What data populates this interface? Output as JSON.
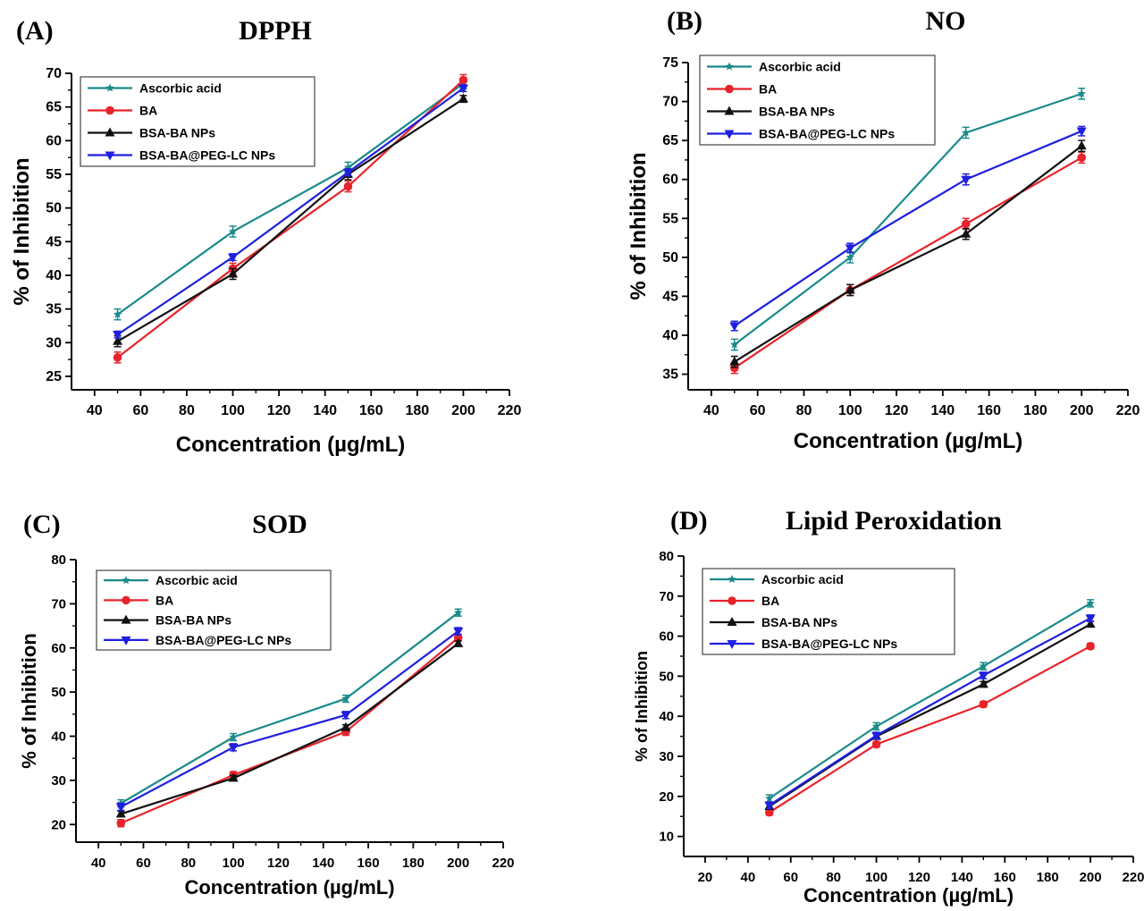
{
  "chart_data": [
    {
      "panel": "(A)",
      "title": "DPPH",
      "type": "line",
      "xlabel": "Concentration (µg/mL)",
      "ylabel": "% of Inhibition",
      "xlim": [
        30,
        220
      ],
      "ylim": [
        23,
        70
      ],
      "xticks": [
        40,
        60,
        80,
        100,
        120,
        140,
        160,
        180,
        200,
        220
      ],
      "yticks": [
        25,
        30,
        35,
        40,
        45,
        50,
        55,
        60,
        65,
        70
      ],
      "legend": "top-left",
      "grid": false,
      "x": [
        50,
        100,
        150,
        200
      ],
      "series": [
        {
          "name": "Ascorbic acid",
          "values": [
            34.2,
            46.5,
            56.0,
            68.5
          ],
          "errors": [
            0.8,
            0.8,
            0.8,
            0.8
          ],
          "color": "#1a8a8a",
          "marker": "star"
        },
        {
          "name": "BA",
          "values": [
            27.8,
            41.0,
            53.2,
            69.0
          ],
          "errors": [
            0.8,
            0.8,
            0.8,
            0.8
          ],
          "color": "#e8232a",
          "marker": "circle"
        },
        {
          "name": "BSA-BA NPs",
          "values": [
            30.2,
            40.2,
            55.0,
            66.2
          ],
          "errors": [
            0.8,
            0.8,
            0.8,
            0.5
          ],
          "color": "#111111",
          "marker": "triangle-up"
        },
        {
          "name": "BSA-BA@PEG-LC NPs",
          "values": [
            31.2,
            42.7,
            55.3,
            67.8
          ],
          "errors": [
            0.5,
            0.5,
            0.5,
            0.5
          ],
          "color": "#1f1fe0",
          "marker": "triangle-down"
        }
      ]
    },
    {
      "panel": "(B)",
      "title": "NO",
      "type": "line",
      "xlabel": "Concentration (µg/mL)",
      "ylabel": "% of Inhibition",
      "xlim": [
        30,
        220
      ],
      "ylim": [
        33,
        75
      ],
      "xticks": [
        40,
        60,
        80,
        100,
        120,
        140,
        160,
        180,
        200,
        220
      ],
      "yticks": [
        35,
        40,
        45,
        50,
        55,
        60,
        65,
        70,
        75
      ],
      "legend": "top-left",
      "grid": false,
      "x": [
        50,
        100,
        150,
        200
      ],
      "series": [
        {
          "name": "Ascorbic acid",
          "values": [
            38.8,
            50.0,
            66.0,
            71.0
          ],
          "errors": [
            0.7,
            0.7,
            0.7,
            0.7
          ],
          "color": "#1a8a8a",
          "marker": "star"
        },
        {
          "name": "BA",
          "values": [
            35.8,
            45.8,
            54.3,
            62.8
          ],
          "errors": [
            0.7,
            0.7,
            0.7,
            0.7
          ],
          "color": "#e8232a",
          "marker": "circle"
        },
        {
          "name": "BSA-BA NPs",
          "values": [
            36.6,
            45.8,
            53.0,
            64.3
          ],
          "errors": [
            0.7,
            0.7,
            0.7,
            0.7
          ],
          "color": "#111111",
          "marker": "triangle-up"
        },
        {
          "name": "BSA-BA@PEG-LC NPs",
          "values": [
            41.2,
            51.2,
            60.0,
            66.2
          ],
          "errors": [
            0.6,
            0.6,
            0.7,
            0.6
          ],
          "color": "#1f1fe0",
          "marker": "triangle-down"
        }
      ]
    },
    {
      "panel": "(C)",
      "title": "SOD",
      "type": "line",
      "xlabel": "Concentration (µg/mL)",
      "ylabel": "% of Inhibition",
      "xlim": [
        30,
        220
      ],
      "ylim": [
        16,
        80
      ],
      "xticks": [
        40,
        60,
        80,
        100,
        120,
        140,
        160,
        180,
        200,
        220
      ],
      "yticks": [
        20,
        30,
        40,
        50,
        60,
        70,
        80
      ],
      "legend": "top-left",
      "grid": false,
      "x": [
        50,
        100,
        150,
        200
      ],
      "series": [
        {
          "name": "Ascorbic acid",
          "values": [
            24.8,
            39.8,
            48.5,
            68.0
          ],
          "errors": [
            0.8,
            0.8,
            0.8,
            0.8
          ],
          "color": "#1a8a8a",
          "marker": "star"
        },
        {
          "name": "BA",
          "values": [
            20.3,
            31.2,
            41.0,
            62.3
          ],
          "errors": [
            0.8,
            0.8,
            0.8,
            0.8
          ],
          "color": "#e8232a",
          "marker": "circle"
        },
        {
          "name": "BSA-BA NPs",
          "values": [
            22.4,
            30.5,
            42.0,
            61.0
          ],
          "errors": [
            0.6,
            0.6,
            0.6,
            0.6
          ],
          "color": "#111111",
          "marker": "triangle-up"
        },
        {
          "name": "BSA-BA@PEG-LC NPs",
          "values": [
            24.0,
            37.5,
            44.8,
            63.8
          ],
          "errors": [
            0.8,
            0.8,
            0.8,
            0.8
          ],
          "color": "#1f1fe0",
          "marker": "triangle-down"
        }
      ]
    },
    {
      "panel": "(D)",
      "title": "Lipid Peroxidation",
      "type": "line",
      "xlabel": "Concentration (µg/mL)",
      "ylabel": "% of Inhibition",
      "xlim": [
        10,
        220
      ],
      "ylim": [
        5,
        80
      ],
      "xticks": [
        20,
        40,
        60,
        80,
        100,
        120,
        140,
        160,
        180,
        200,
        220
      ],
      "yticks": [
        10,
        20,
        30,
        40,
        50,
        60,
        70,
        80
      ],
      "legend": "top-left",
      "grid": false,
      "x": [
        50,
        100,
        150,
        200
      ],
      "series": [
        {
          "name": "Ascorbic acid",
          "values": [
            19.5,
            37.5,
            52.5,
            68.2
          ],
          "errors": [
            0.9,
            0.9,
            0.9,
            0.9
          ],
          "color": "#1a8a8a",
          "marker": "star"
        },
        {
          "name": "BA",
          "values": [
            16.0,
            33.0,
            43.0,
            57.5
          ],
          "errors": [
            0.7,
            0.7,
            0.7,
            0.7
          ],
          "color": "#e8232a",
          "marker": "circle"
        },
        {
          "name": "BSA-BA NPs",
          "values": [
            17.5,
            35.0,
            48.0,
            63.0
          ],
          "errors": [
            0.7,
            0.7,
            0.7,
            0.7
          ],
          "color": "#111111",
          "marker": "triangle-up"
        },
        {
          "name": "BSA-BA@PEG-LC NPs",
          "values": [
            17.8,
            35.2,
            50.2,
            64.5
          ],
          "errors": [
            0.8,
            0.8,
            0.8,
            0.8
          ],
          "color": "#1f1fe0",
          "marker": "triangle-down"
        }
      ]
    }
  ]
}
